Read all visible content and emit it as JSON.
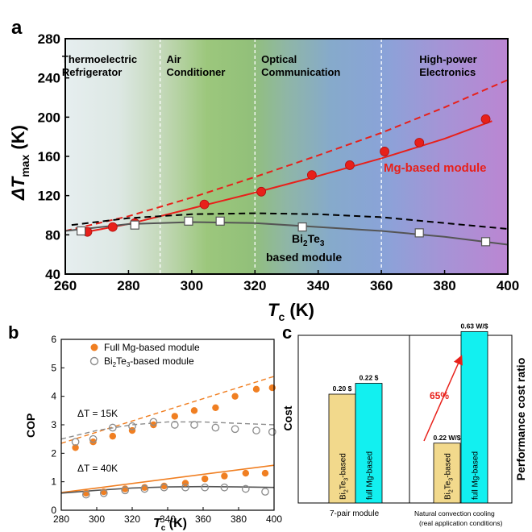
{
  "colors": {
    "red": "#e8201a",
    "orange": "#f07f22",
    "gray": "#555555",
    "light_gray": "#8c8c8c",
    "black": "#000000",
    "bar_tan": "#f2d98c",
    "bar_cyan": "#12f0f0"
  },
  "panel_labels": {
    "a": "a",
    "b": "b",
    "c": "c"
  },
  "chart_data": [
    {
      "id": "a",
      "type": "line",
      "xlabel": {
        "main": "T",
        "sub": "c",
        "unit": " (K)"
      },
      "ylabel": {
        "main": "ΔT",
        "sub": "max",
        "unit": " (K)"
      },
      "xlim": [
        260,
        400
      ],
      "ylim": [
        40,
        280
      ],
      "xticks": [
        260,
        280,
        300,
        320,
        340,
        360,
        380,
        400
      ],
      "yticks": [
        40,
        80,
        120,
        160,
        200,
        240,
        280
      ],
      "region_boundaries": [
        290,
        320,
        360
      ],
      "regions": [
        {
          "line1": "Thermoelectric",
          "line2": "Refrigerator",
          "x": 261
        },
        {
          "line1": "Air",
          "line2": "Conditioner",
          "x": 292
        },
        {
          "line1": "Optical",
          "line2": "Communication",
          "x": 322
        },
        {
          "line1": "High-power",
          "line2": "Electronics",
          "x": 372
        }
      ],
      "series": [
        {
          "name": "Mg-based module",
          "style": "red-points",
          "x": [
            267,
            275,
            282,
            304,
            322,
            338,
            350,
            361,
            372,
            393
          ],
          "y": [
            83,
            88,
            92,
            111,
            124,
            141,
            151,
            165,
            174,
            198
          ]
        },
        {
          "name": "Bi2Te3 based module",
          "style": "gray-squares",
          "x": [
            265,
            282,
            299,
            309,
            335,
            372,
            393
          ],
          "y": [
            84,
            90,
            94,
            94,
            88,
            82,
            73
          ]
        },
        {
          "name": "Mg fit",
          "style": "red-solid-fit",
          "x": [
            265,
            280,
            300,
            320,
            340,
            360,
            380,
            395
          ],
          "y": [
            82,
            91,
            107,
            123,
            140,
            158,
            178,
            196
          ]
        },
        {
          "name": "Mg ideal",
          "style": "red-dashed",
          "x": [
            260,
            280,
            300,
            320,
            340,
            360,
            380,
            400
          ],
          "y": [
            84,
            99,
            118,
            139,
            161,
            184,
            210,
            238
          ]
        },
        {
          "name": "Bi2Te3 fit",
          "style": "gray-solid-fit",
          "x": [
            260,
            280,
            300,
            320,
            340,
            360,
            380,
            400
          ],
          "y": [
            84,
            91,
            93,
            92,
            88,
            84,
            78,
            70
          ]
        },
        {
          "name": "Bi2Te3 ideal",
          "style": "black-dashed",
          "x": [
            262,
            280,
            300,
            320,
            340,
            360,
            380,
            400
          ],
          "y": [
            90,
            97,
            101,
            102,
            101,
            98,
            92,
            86
          ]
        }
      ],
      "annotations": {
        "mg_label": "Mg-based module",
        "bi_label_line1_a": "Bi",
        "bi_label_line1_sub1": "2",
        "bi_label_line1_b": "Te",
        "bi_label_line1_sub2": "3",
        "bi_label_line2": "based module"
      }
    },
    {
      "id": "b",
      "type": "scatter",
      "xlabel": {
        "main": "T",
        "sub": "c",
        "unit": " (K)"
      },
      "ylabel": "COP",
      "xlim": [
        280,
        400
      ],
      "ylim": [
        0,
        6
      ],
      "xticks": [
        280,
        300,
        320,
        340,
        360,
        380,
        400
      ],
      "yticks": [
        0,
        1,
        2,
        3,
        4,
        5,
        6
      ],
      "legend": [
        {
          "name": "Full Mg-based module",
          "marker": "orange-filled"
        },
        {
          "name_a": "Bi",
          "name_sub1": "2",
          "name_b": "Te",
          "name_sub2": "3",
          "name_c": "-based module",
          "marker": "gray-open"
        }
      ],
      "series": [
        {
          "name": "Mg 15K",
          "style": "orange-filled",
          "x": [
            288,
            298,
            309,
            320,
            332,
            344,
            355,
            367,
            378,
            390,
            399
          ],
          "y": [
            2.2,
            2.4,
            2.6,
            2.8,
            3.0,
            3.3,
            3.5,
            3.6,
            4.0,
            4.25,
            4.3
          ]
        },
        {
          "name": "Bi 15K",
          "style": "gray-open",
          "x": [
            288,
            298,
            309,
            320,
            332,
            344,
            355,
            367,
            378,
            390,
            399
          ],
          "y": [
            2.4,
            2.5,
            2.9,
            2.95,
            3.1,
            3.0,
            3.0,
            2.9,
            2.85,
            2.8,
            2.75
          ]
        },
        {
          "name": "Mg 40K",
          "style": "orange-filled",
          "x": [
            294,
            304,
            316,
            327,
            338,
            350,
            361,
            372,
            384,
            395
          ],
          "y": [
            0.6,
            0.65,
            0.75,
            0.8,
            0.85,
            0.95,
            1.1,
            1.2,
            1.3,
            1.3
          ]
        },
        {
          "name": "Bi 40K",
          "style": "gray-open",
          "x": [
            294,
            304,
            316,
            327,
            338,
            350,
            361,
            372,
            384,
            395
          ],
          "y": [
            0.55,
            0.6,
            0.7,
            0.75,
            0.8,
            0.8,
            0.8,
            0.8,
            0.75,
            0.65
          ]
        },
        {
          "name": "Mg 15K ideal",
          "style": "orange-dashed",
          "x": [
            280,
            400
          ],
          "y": [
            2.35,
            4.7
          ]
        },
        {
          "name": "Bi 15K ideal",
          "style": "gray-dashed",
          "x": [
            280,
            300,
            320,
            340,
            360,
            380,
            400
          ],
          "y": [
            2.5,
            2.8,
            3.0,
            3.1,
            3.1,
            3.05,
            3.0
          ]
        },
        {
          "name": "Mg 40K line",
          "style": "orange-solid",
          "x": [
            280,
            400
          ],
          "y": [
            0.62,
            1.58
          ]
        },
        {
          "name": "Bi 40K line",
          "style": "gray-solid",
          "x": [
            280,
            300,
            320,
            340,
            360,
            380,
            400
          ],
          "y": [
            0.6,
            0.7,
            0.78,
            0.82,
            0.83,
            0.82,
            0.8
          ]
        }
      ],
      "annotations": {
        "dt15": "ΔT = 15K",
        "dt40": "ΔT = 40K"
      }
    },
    {
      "id": "c",
      "type": "bar",
      "groups": [
        "7-pair module",
        "Natural convection cooling"
      ],
      "group_subtitle": "(real application conditions)",
      "left_ylabel": "Cost",
      "right_ylabel": "Performance cost ratio",
      "bars": [
        {
          "group": 0,
          "label_a": "Bi",
          "label_sub1": "2",
          "label_b": "Te",
          "label_sub2": "3",
          "label_c": "-based",
          "value": 0.2,
          "display": "0.20 $",
          "axis": "left",
          "color": "tan"
        },
        {
          "group": 0,
          "label": "full Mg-based",
          "value": 0.22,
          "display": "0.22 $",
          "axis": "left",
          "color": "cyan"
        },
        {
          "group": 1,
          "label_a": "Bi",
          "label_sub1": "2",
          "label_b": "Te",
          "label_sub2": "3",
          "label_c": "-based",
          "value": 0.22,
          "display": "0.22 W/$",
          "axis": "right",
          "color": "tan"
        },
        {
          "group": 1,
          "label": "full Mg-based",
          "value": 0.63,
          "display": "0.63 W/$",
          "axis": "right",
          "color": "cyan"
        }
      ],
      "left_ylim": [
        0,
        0.4
      ],
      "right_ylim": [
        0,
        0.8
      ],
      "arrow_label": "65%"
    }
  ]
}
